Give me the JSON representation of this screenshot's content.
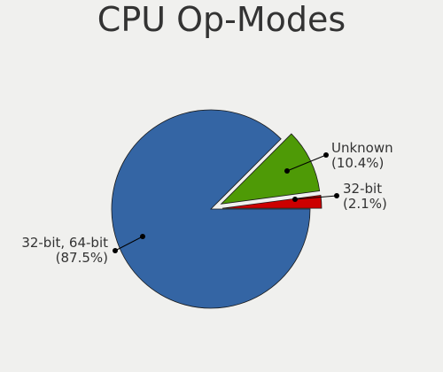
{
  "chart_data": {
    "type": "pie",
    "title": "CPU Op-Modes",
    "slices": [
      {
        "name": "32-bit, 64-bit",
        "value": 87.5,
        "label_line1": "32-bit, 64-bit",
        "label_line2": "(87.5%)",
        "color": "#3465a4",
        "exploded": false
      },
      {
        "name": "Unknown",
        "value": 10.4,
        "label_line1": "Unknown",
        "label_line2": "(10.4%)",
        "color": "#4e9a06",
        "exploded": true
      },
      {
        "name": "32-bit",
        "value": 2.1,
        "label_line1": "32-bit",
        "label_line2": "(2.1%)",
        "color": "#cc0000",
        "exploded": true
      }
    ]
  }
}
